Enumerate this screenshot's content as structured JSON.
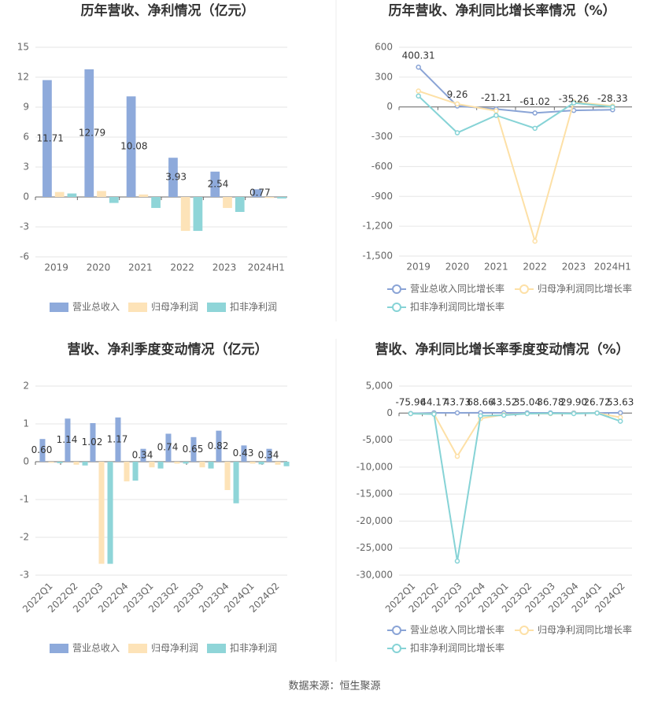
{
  "chart_data": [
    {
      "type": "bar",
      "title": "历年营收、净利情况（亿元）",
      "categories": [
        "2019",
        "2020",
        "2021",
        "2022",
        "2023",
        "2024H1"
      ],
      "series": [
        {
          "name": "营业总收入",
          "color": "#8eaadb",
          "values": [
            11.71,
            12.79,
            10.08,
            3.93,
            2.54,
            0.77
          ],
          "labeled": true
        },
        {
          "name": "归母净利润",
          "color": "#fde3b8",
          "values": [
            0.5,
            0.6,
            0.25,
            -3.4,
            -1.1,
            -0.1
          ]
        },
        {
          "name": "扣非净利润",
          "color": "#8fd5d8",
          "values": [
            0.35,
            -0.6,
            -1.1,
            -3.4,
            -1.5,
            -0.15
          ]
        }
      ],
      "ylim": [
        -6,
        15
      ],
      "yticks": [
        -6,
        -3,
        0,
        3,
        6,
        9,
        12,
        15
      ],
      "grid": true
    },
    {
      "type": "line",
      "title": "历年营收、净利同比增长率情况（%）",
      "categories": [
        "2019",
        "2020",
        "2021",
        "2022",
        "2023",
        "2024H1"
      ],
      "series": [
        {
          "name": "营业总收入同比增长率",
          "color": "#8aa4d6",
          "values": [
            400.31,
            9.26,
            -21.21,
            -61.02,
            -35.26,
            -28.33
          ],
          "labeled": true
        },
        {
          "name": "归母净利润同比增长率",
          "color": "#fde0a6",
          "values": [
            160,
            30,
            -40,
            -1350,
            50,
            10
          ]
        },
        {
          "name": "扣非净利润同比增长率",
          "color": "#86d3d6",
          "values": [
            110,
            -260,
            -85,
            -215,
            40,
            0
          ]
        }
      ],
      "ylim": [
        -1500,
        600
      ],
      "yticks": [
        {
          "value": -1500,
          "label": "-1,500"
        },
        {
          "value": -1200,
          "label": "-1,200"
        },
        -900,
        -600,
        -300,
        0,
        300,
        600
      ],
      "grid": true
    },
    {
      "type": "bar",
      "title": "营收、净利季度变动情况（亿元）",
      "categories": [
        "2022Q1",
        "2022Q2",
        "2022Q3",
        "2022Q4",
        "2023Q1",
        "2023Q2",
        "2023Q3",
        "2023Q4",
        "2024Q1",
        "2024Q2"
      ],
      "series": [
        {
          "name": "营业总收入",
          "color": "#8eaadb",
          "values": [
            0.6,
            1.14,
            1.02,
            1.17,
            0.34,
            0.74,
            0.65,
            0.82,
            0.43,
            0.34
          ],
          "value_labels": [
            "0.60",
            "1.14",
            "1.02",
            "1.17",
            "0.34",
            "0.74",
            "0.65",
            "0.82",
            "0.43",
            "0.34"
          ],
          "labeled": true
        },
        {
          "name": "归母净利润",
          "color": "#fde3b8",
          "values": [
            -0.03,
            -0.08,
            -2.7,
            -0.52,
            -0.15,
            -0.05,
            -0.15,
            -0.75,
            -0.05,
            -0.08
          ]
        },
        {
          "name": "扣非净利润",
          "color": "#8fd5d8",
          "values": [
            -0.04,
            -0.1,
            -2.7,
            -0.5,
            -0.18,
            -0.05,
            -0.18,
            -1.1,
            -0.07,
            -0.12
          ]
        }
      ],
      "ylim": [
        -3,
        2
      ],
      "yticks": [
        -3,
        -2,
        -1,
        0,
        1,
        2
      ],
      "grid": true
    },
    {
      "type": "line",
      "title": "营收、净利同比增长率季度变动情况（%）",
      "categories": [
        "2022Q1",
        "2022Q2",
        "2022Q3",
        "2022Q4",
        "2023Q1",
        "2023Q2",
        "2023Q3",
        "2023Q4",
        "2024Q1",
        "2024Q2"
      ],
      "series": [
        {
          "name": "营业总收入同比增长率",
          "color": "#8aa4d6",
          "values": [
            -75.96,
            44.17,
            43.73,
            68.66,
            43.52,
            35.04,
            36.78,
            29.9,
            26.72,
            53.63
          ],
          "value_labels": [
            "-75.96",
            "44.17",
            "43.73",
            "68.66",
            "43.52",
            "35.04",
            "36.78",
            "29.90",
            "26.72",
            "53.63"
          ],
          "labeled": true
        },
        {
          "name": "归母净利润同比增长率",
          "color": "#fde0a6",
          "values": [
            -100,
            -150,
            -8000,
            -1000,
            -300,
            -100,
            -100,
            -50,
            0,
            -800
          ]
        },
        {
          "name": "扣非净利润同比增长率",
          "color": "#86d3d6",
          "values": [
            -100,
            -200,
            -27400,
            -500,
            -400,
            -100,
            -50,
            -100,
            0,
            -1500
          ]
        }
      ],
      "ylim": [
        -30000,
        5000
      ],
      "yticks": [
        {
          "value": -30000,
          "label": "-30,000"
        },
        {
          "value": -25000,
          "label": "-25,000"
        },
        {
          "value": -20000,
          "label": "-20,000"
        },
        {
          "value": -15000,
          "label": "-15,000"
        },
        {
          "value": -10000,
          "label": "-10,000"
        },
        {
          "value": -5000,
          "label": "-5,000"
        },
        0,
        {
          "value": 5000,
          "label": "5,000"
        }
      ],
      "grid": true
    }
  ],
  "footer": "数据来源：恒生聚源"
}
